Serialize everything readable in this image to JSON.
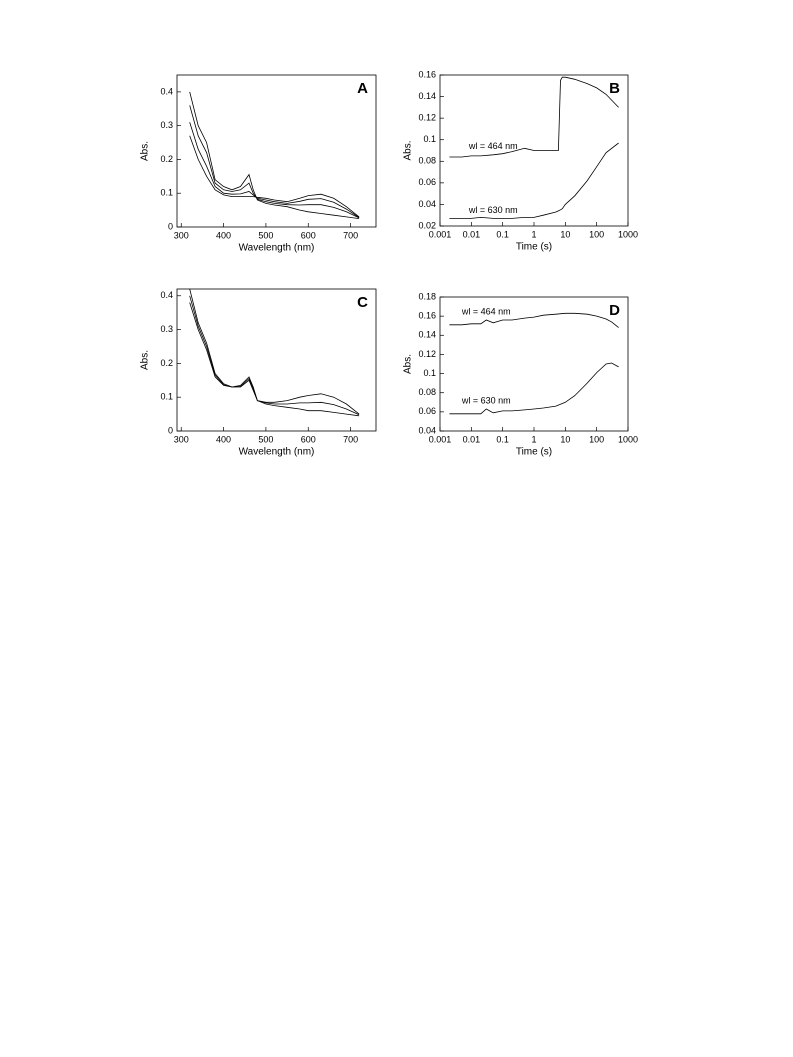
{
  "chart_data": [
    {
      "type": "line",
      "panel_label": "A",
      "xlabel": "Wavelength (nm)",
      "ylabel": "Abs.",
      "x": [
        320,
        340,
        360,
        380,
        400,
        420,
        440,
        460,
        470,
        480,
        500,
        520,
        550,
        580,
        600,
        630,
        660,
        690,
        720
      ],
      "series": [
        {
          "color": "#000000",
          "values": [
            0.4,
            0.3,
            0.25,
            0.14,
            0.12,
            0.11,
            0.12,
            0.155,
            0.11,
            0.08,
            0.07,
            0.065,
            0.06,
            0.05,
            0.045,
            0.04,
            0.035,
            0.03,
            0.025
          ]
        },
        {
          "color": "#000000",
          "values": [
            0.36,
            0.27,
            0.22,
            0.13,
            0.11,
            0.105,
            0.11,
            0.13,
            0.1,
            0.082,
            0.075,
            0.07,
            0.066,
            0.065,
            0.066,
            0.066,
            0.058,
            0.045,
            0.027
          ]
        },
        {
          "color": "#000000",
          "values": [
            0.31,
            0.23,
            0.18,
            0.12,
            0.1,
            0.097,
            0.098,
            0.105,
            0.095,
            0.085,
            0.08,
            0.075,
            0.07,
            0.076,
            0.082,
            0.084,
            0.073,
            0.053,
            0.028
          ]
        },
        {
          "color": "#000000",
          "values": [
            0.27,
            0.2,
            0.15,
            0.11,
            0.095,
            0.09,
            0.09,
            0.09,
            0.09,
            0.088,
            0.085,
            0.08,
            0.075,
            0.085,
            0.093,
            0.097,
            0.085,
            0.06,
            0.03
          ]
        }
      ],
      "xlim": [
        290,
        760
      ],
      "xticks": [
        300,
        400,
        500,
        600,
        700
      ],
      "ylim": [
        0,
        0.45
      ],
      "yticks": [
        0,
        0.1,
        0.2,
        0.3,
        0.4
      ]
    },
    {
      "type": "line",
      "panel_label": "B",
      "xlabel": "Time (s)",
      "ylabel": "Abs.",
      "xscale": "log",
      "x": [
        0.002,
        0.005,
        0.01,
        0.02,
        0.05,
        0.1,
        0.2,
        0.5,
        1,
        2,
        5,
        6,
        7,
        8,
        10,
        20,
        50,
        100,
        200,
        500
      ],
      "series": [
        {
          "color": "#000000",
          "values": [
            0.084,
            0.084,
            0.085,
            0.085,
            0.086,
            0.087,
            0.089,
            0.092,
            0.09,
            0.09,
            0.09,
            0.09,
            0.155,
            0.158,
            0.158,
            0.156,
            0.152,
            0.148,
            0.142,
            0.13
          ]
        },
        {
          "color": "#000000",
          "values": [
            0.027,
            0.027,
            0.027,
            0.028,
            0.027,
            0.027,
            0.027,
            0.028,
            0.028,
            0.03,
            0.033,
            0.034,
            0.035,
            0.036,
            0.04,
            0.048,
            0.062,
            0.075,
            0.088,
            0.097
          ]
        }
      ],
      "annotations": [
        "wl = 464 nm",
        "wl = 630 nm"
      ],
      "xlim": [
        0.001,
        1000
      ],
      "xticks": [
        0.001,
        0.01,
        0.1,
        1,
        10,
        100,
        1000
      ],
      "ylim": [
        0.02,
        0.16
      ],
      "yticks": [
        0.02,
        0.04,
        0.06,
        0.08,
        0.1,
        0.12,
        0.14,
        0.16
      ]
    },
    {
      "type": "line",
      "panel_label": "C",
      "xlabel": "Wavelength (nm)",
      "ylabel": "Abs.",
      "x": [
        320,
        340,
        360,
        380,
        400,
        420,
        440,
        460,
        470,
        480,
        500,
        520,
        550,
        580,
        600,
        630,
        660,
        690,
        720
      ],
      "series": [
        {
          "color": "#000000",
          "values": [
            0.42,
            0.32,
            0.26,
            0.17,
            0.14,
            0.13,
            0.135,
            0.16,
            0.13,
            0.09,
            0.08,
            0.075,
            0.07,
            0.065,
            0.06,
            0.06,
            0.055,
            0.05,
            0.045
          ]
        },
        {
          "color": "#000000",
          "values": [
            0.4,
            0.31,
            0.25,
            0.165,
            0.137,
            0.13,
            0.132,
            0.155,
            0.125,
            0.09,
            0.083,
            0.08,
            0.08,
            0.083,
            0.083,
            0.085,
            0.078,
            0.065,
            0.048
          ]
        },
        {
          "color": "#000000",
          "values": [
            0.38,
            0.3,
            0.24,
            0.16,
            0.135,
            0.13,
            0.13,
            0.15,
            0.12,
            0.09,
            0.085,
            0.085,
            0.09,
            0.1,
            0.105,
            0.11,
            0.1,
            0.08,
            0.05
          ]
        }
      ],
      "xlim": [
        290,
        760
      ],
      "xticks": [
        300,
        400,
        500,
        600,
        700
      ],
      "ylim": [
        0,
        0.42
      ],
      "yticks": [
        0,
        0.1,
        0.2,
        0.3,
        0.4
      ]
    },
    {
      "type": "line",
      "panel_label": "D",
      "xlabel": "Time (s)",
      "ylabel": "Abs.",
      "xscale": "log",
      "x": [
        0.002,
        0.005,
        0.01,
        0.02,
        0.03,
        0.05,
        0.1,
        0.2,
        0.5,
        1,
        2,
        5,
        10,
        20,
        50,
        100,
        200,
        300,
        500
      ],
      "series": [
        {
          "color": "#000000",
          "values": [
            0.151,
            0.151,
            0.152,
            0.152,
            0.156,
            0.153,
            0.156,
            0.156,
            0.158,
            0.159,
            0.161,
            0.162,
            0.163,
            0.163,
            0.162,
            0.16,
            0.157,
            0.154,
            0.148
          ]
        },
        {
          "color": "#000000",
          "values": [
            0.058,
            0.058,
            0.058,
            0.058,
            0.063,
            0.059,
            0.061,
            0.061,
            0.062,
            0.063,
            0.064,
            0.066,
            0.07,
            0.077,
            0.09,
            0.101,
            0.11,
            0.111,
            0.107
          ]
        }
      ],
      "annotations": [
        "wl = 464 nm",
        "wl = 630 nm"
      ],
      "xlim": [
        0.001,
        1000
      ],
      "xticks": [
        0.001,
        0.01,
        0.1,
        1,
        10,
        100,
        1000
      ],
      "ylim": [
        0.04,
        0.18
      ],
      "yticks": [
        0.04,
        0.06,
        0.08,
        0.1,
        0.12,
        0.14,
        0.16,
        0.18
      ]
    }
  ]
}
